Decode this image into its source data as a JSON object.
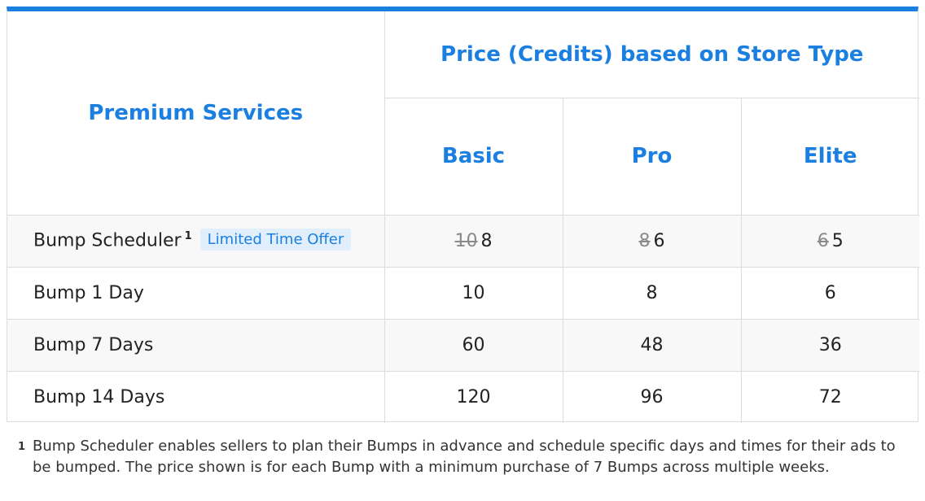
{
  "header": {
    "services_title": "Premium Services",
    "price_title": "Price (Credits) based on Store Type",
    "tiers": [
      "Basic",
      "Pro",
      "Elite"
    ]
  },
  "rows": [
    {
      "service": "Bump Scheduler",
      "footnote_mark": "1",
      "badge": "Limited Time Offer",
      "prices": [
        {
          "old": "10",
          "value": "8"
        },
        {
          "old": "8",
          "value": "6"
        },
        {
          "old": "6",
          "value": "5"
        }
      ]
    },
    {
      "service": "Bump 1 Day",
      "prices": [
        {
          "value": "10"
        },
        {
          "value": "8"
        },
        {
          "value": "6"
        }
      ]
    },
    {
      "service": "Bump 7 Days",
      "prices": [
        {
          "value": "60"
        },
        {
          "value": "48"
        },
        {
          "value": "36"
        }
      ]
    },
    {
      "service": "Bump 14 Days",
      "prices": [
        {
          "value": "120"
        },
        {
          "value": "96"
        },
        {
          "value": "72"
        }
      ]
    }
  ],
  "footnote": {
    "mark": "1",
    "text": "Bump Scheduler enables sellers to plan their Bumps in advance and schedule specific days and times for their ads to be bumped. The price shown is for each Bump with a minimum purchase of 7 Bumps across multiple weeks."
  },
  "colors": {
    "accent": "#1a7fe0",
    "badge_bg": "#e1effc",
    "row_shade": "#f8f8f8",
    "border": "#dcdcdc"
  }
}
